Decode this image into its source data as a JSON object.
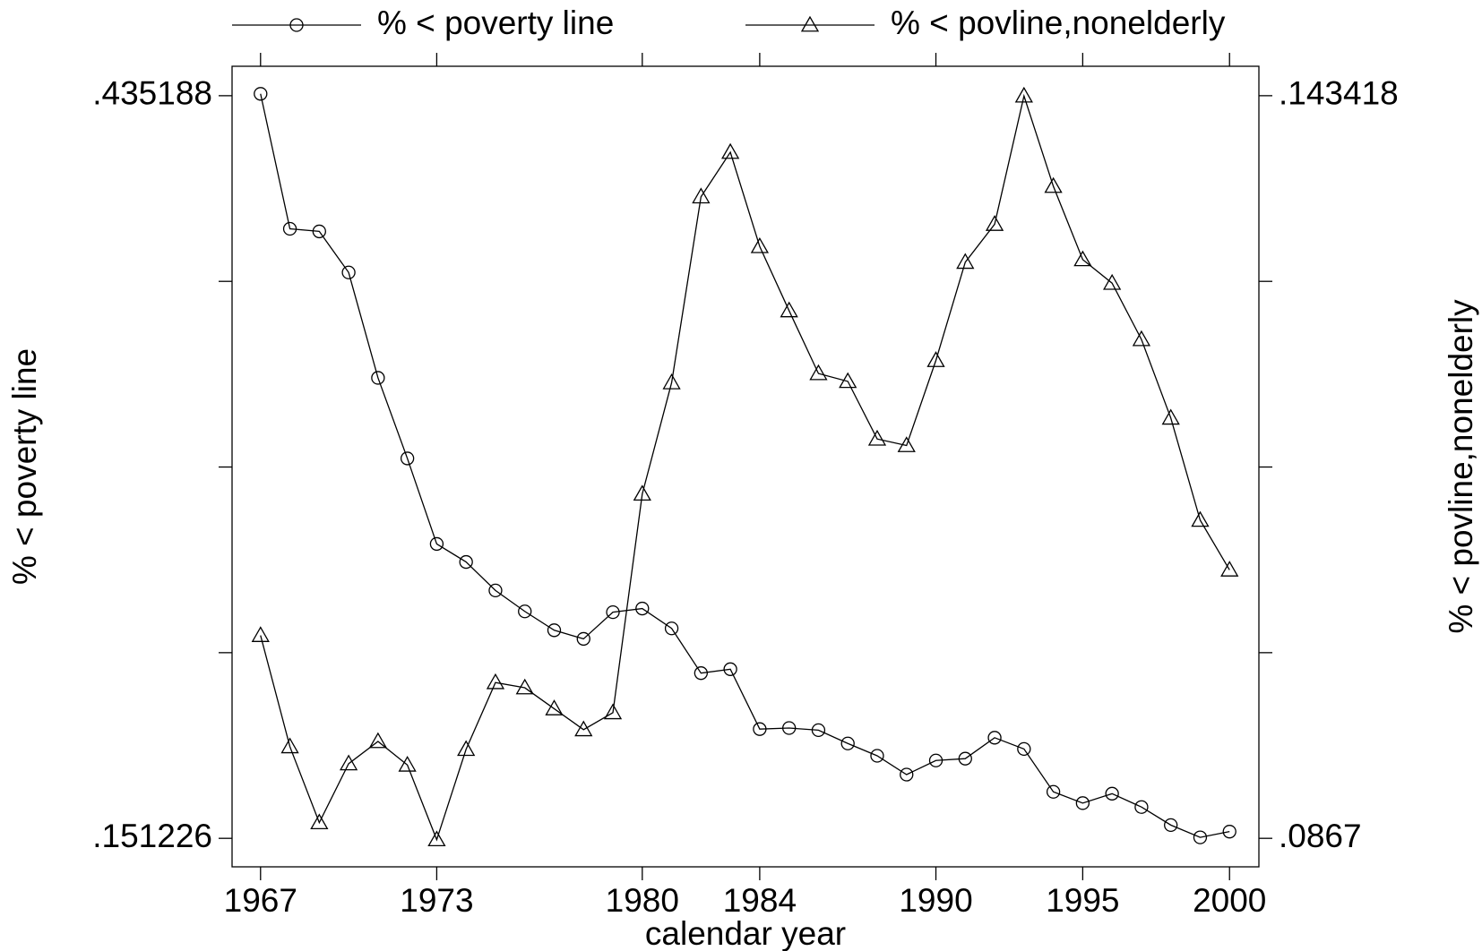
{
  "chart_data": {
    "type": "line",
    "x_label": "calendar year",
    "y_label": "% < poverty line",
    "y2_label": "% < povline,nonelderly",
    "x": [
      1967,
      1968,
      1969,
      1970,
      1971,
      1972,
      1973,
      1974,
      1975,
      1976,
      1977,
      1978,
      1979,
      1980,
      1981,
      1982,
      1983,
      1984,
      1985,
      1986,
      1987,
      1988,
      1989,
      1990,
      1991,
      1992,
      1993,
      1994,
      1995,
      1996,
      1997,
      1998,
      1999,
      2000
    ],
    "series": [
      {
        "name": "% < poverty line",
        "color": "#000000",
        "marker": "circle",
        "values": [
          0.4359,
          0.3843,
          0.3833,
          0.3676,
          0.3273,
          0.2965,
          0.2638,
          0.2569,
          0.246,
          0.238,
          0.2308,
          0.2275,
          0.2377,
          0.2391,
          0.2315,
          0.2144,
          0.2159,
          0.193,
          0.1934,
          0.1926,
          0.1875,
          0.1828,
          0.1756,
          0.181,
          0.1817,
          0.1897,
          0.1854,
          0.169,
          0.1647,
          0.1683,
          0.1632,
          0.1563,
          0.1516,
          0.1538
        ]
      },
      {
        "name": "% < povline,nonelderly",
        "color": "#000000",
        "marker": "triangle",
        "axis": "y2",
        "values": [
          0.1022,
          0.0937,
          0.0879,
          0.0924,
          0.0941,
          0.0923,
          0.0866,
          0.0935,
          0.0986,
          0.0982,
          0.0966,
          0.095,
          0.0963,
          0.113,
          0.1215,
          0.1357,
          0.1391,
          0.1319,
          0.127,
          0.1222,
          0.1216,
          0.1172,
          0.1167,
          0.1232,
          0.1307,
          0.1336,
          0.1434,
          0.1365,
          0.1309,
          0.1291,
          0.1248,
          0.1188,
          0.111,
          0.1072
        ]
      }
    ],
    "xlim": [
      1966.03,
      2001.0
    ],
    "xticks": [
      1967,
      1973,
      1980,
      1984,
      1990,
      1995,
      2000
    ],
    "ylim": [
      0.140332,
      0.446445
    ],
    "yticks": [
      {
        "value": 0.151226,
        "label": ".151226"
      },
      {
        "value": 0.435188,
        "label": ".435188"
      }
    ],
    "y2lim": [
      0.084524,
      0.145666
    ],
    "y2ticks": [
      {
        "value": 0.0867,
        "label": ".0867"
      },
      {
        "value": 0.143418,
        "label": ".143418"
      }
    ],
    "legend": "top"
  }
}
